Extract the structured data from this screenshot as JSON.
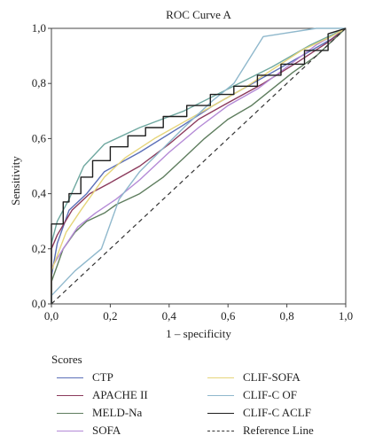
{
  "chart_data": {
    "type": "line",
    "title": "ROC Curve A",
    "xlabel": "1 – specificity",
    "ylabel": "Sensitivity",
    "xlim": [
      0,
      1
    ],
    "ylim": [
      0,
      1
    ],
    "xticks": [
      "0,0",
      "0,2",
      "0,4",
      "0,6",
      "0,8",
      "1,0"
    ],
    "yticks": [
      "0,0",
      "0,2",
      "0,4",
      "0,6",
      "0,8",
      "1,0"
    ],
    "grid": false,
    "legend": {
      "title": "Scores",
      "placement": "bottom"
    },
    "series": [
      {
        "name": "CTP",
        "color": "#5b6fb8",
        "x": [
          0,
          0,
          0.02,
          0.06,
          0.12,
          0.18,
          0.3,
          0.45,
          0.55,
          0.65,
          0.75,
          0.85,
          0.95,
          1
        ],
        "y": [
          0,
          0.1,
          0.22,
          0.34,
          0.4,
          0.48,
          0.55,
          0.65,
          0.72,
          0.78,
          0.84,
          0.9,
          0.96,
          1
        ]
      },
      {
        "name": "APACHE II",
        "color": "#8b3a5c",
        "x": [
          0,
          0,
          0.02,
          0.07,
          0.13,
          0.2,
          0.3,
          0.4,
          0.5,
          0.6,
          0.72,
          0.84,
          0.94,
          1
        ],
        "y": [
          0,
          0.2,
          0.25,
          0.34,
          0.4,
          0.44,
          0.5,
          0.58,
          0.67,
          0.73,
          0.8,
          0.88,
          0.95,
          1
        ]
      },
      {
        "name": "MELD-Na",
        "color": "#5e7d5e",
        "x": [
          0,
          0,
          0.04,
          0.08,
          0.12,
          0.18,
          0.22,
          0.3,
          0.38,
          0.45,
          0.52,
          0.6,
          0.68,
          0.75,
          0.82,
          0.9,
          0.96,
          1
        ],
        "y": [
          0,
          0.08,
          0.2,
          0.26,
          0.3,
          0.33,
          0.36,
          0.4,
          0.46,
          0.53,
          0.6,
          0.67,
          0.72,
          0.78,
          0.84,
          0.9,
          0.96,
          1
        ]
      },
      {
        "name": "SOFA",
        "color": "#b48ad6",
        "x": [
          0,
          0,
          0.04,
          0.09,
          0.15,
          0.22,
          0.3,
          0.4,
          0.5,
          0.6,
          0.7,
          0.8,
          0.9,
          1
        ],
        "y": [
          0,
          0.13,
          0.2,
          0.28,
          0.33,
          0.38,
          0.45,
          0.55,
          0.64,
          0.72,
          0.78,
          0.86,
          0.94,
          1
        ]
      },
      {
        "name": "CLIF-SOFA",
        "color": "#e6d57a",
        "x": [
          0,
          0,
          0.05,
          0.1,
          0.18,
          0.25,
          0.35,
          0.45,
          0.55,
          0.65,
          0.75,
          0.85,
          0.95,
          1
        ],
        "y": [
          0,
          0.12,
          0.26,
          0.34,
          0.46,
          0.53,
          0.6,
          0.66,
          0.72,
          0.78,
          0.85,
          0.92,
          0.97,
          1
        ]
      },
      {
        "name": "CLIF-C OF",
        "color": "#8fb8cc",
        "x": [
          0,
          0,
          0.08,
          0.17,
          0.23,
          0.3,
          0.45,
          0.55,
          0.62,
          0.72,
          0.78,
          0.9,
          1
        ],
        "y": [
          0,
          0.03,
          0.12,
          0.2,
          0.38,
          0.48,
          0.64,
          0.74,
          0.8,
          0.97,
          0.98,
          1,
          1
        ]
      },
      {
        "name": "CLIF-C ACLF",
        "color": "#1e1e1e",
        "x": [
          0,
          0,
          0.04,
          0.04,
          0.06,
          0.06,
          0.1,
          0.1,
          0.14,
          0.14,
          0.2,
          0.2,
          0.26,
          0.26,
          0.32,
          0.32,
          0.38,
          0.38,
          0.46,
          0.46,
          0.54,
          0.54,
          0.62,
          0.62,
          0.7,
          0.7,
          0.78,
          0.78,
          0.86,
          0.86,
          0.94,
          0.94,
          1
        ],
        "y": [
          0,
          0.29,
          0.29,
          0.37,
          0.37,
          0.4,
          0.4,
          0.46,
          0.46,
          0.52,
          0.52,
          0.57,
          0.57,
          0.61,
          0.61,
          0.64,
          0.64,
          0.68,
          0.68,
          0.72,
          0.72,
          0.76,
          0.76,
          0.79,
          0.79,
          0.83,
          0.83,
          0.87,
          0.87,
          0.92,
          0.92,
          0.98,
          1
        ]
      },
      {
        "name": "Reference Line",
        "color": "#333333",
        "dashed": true,
        "x": [
          0,
          1
        ],
        "y": [
          0,
          1
        ]
      }
    ],
    "extra_curve": {
      "color": "#6fa8a0",
      "x": [
        0,
        0,
        0.02,
        0.06,
        0.11,
        0.18,
        0.3,
        0.45,
        0.6,
        0.75,
        0.88,
        1
      ],
      "y": [
        0,
        0.22,
        0.3,
        0.38,
        0.5,
        0.58,
        0.64,
        0.7,
        0.78,
        0.86,
        0.94,
        1
      ]
    }
  }
}
